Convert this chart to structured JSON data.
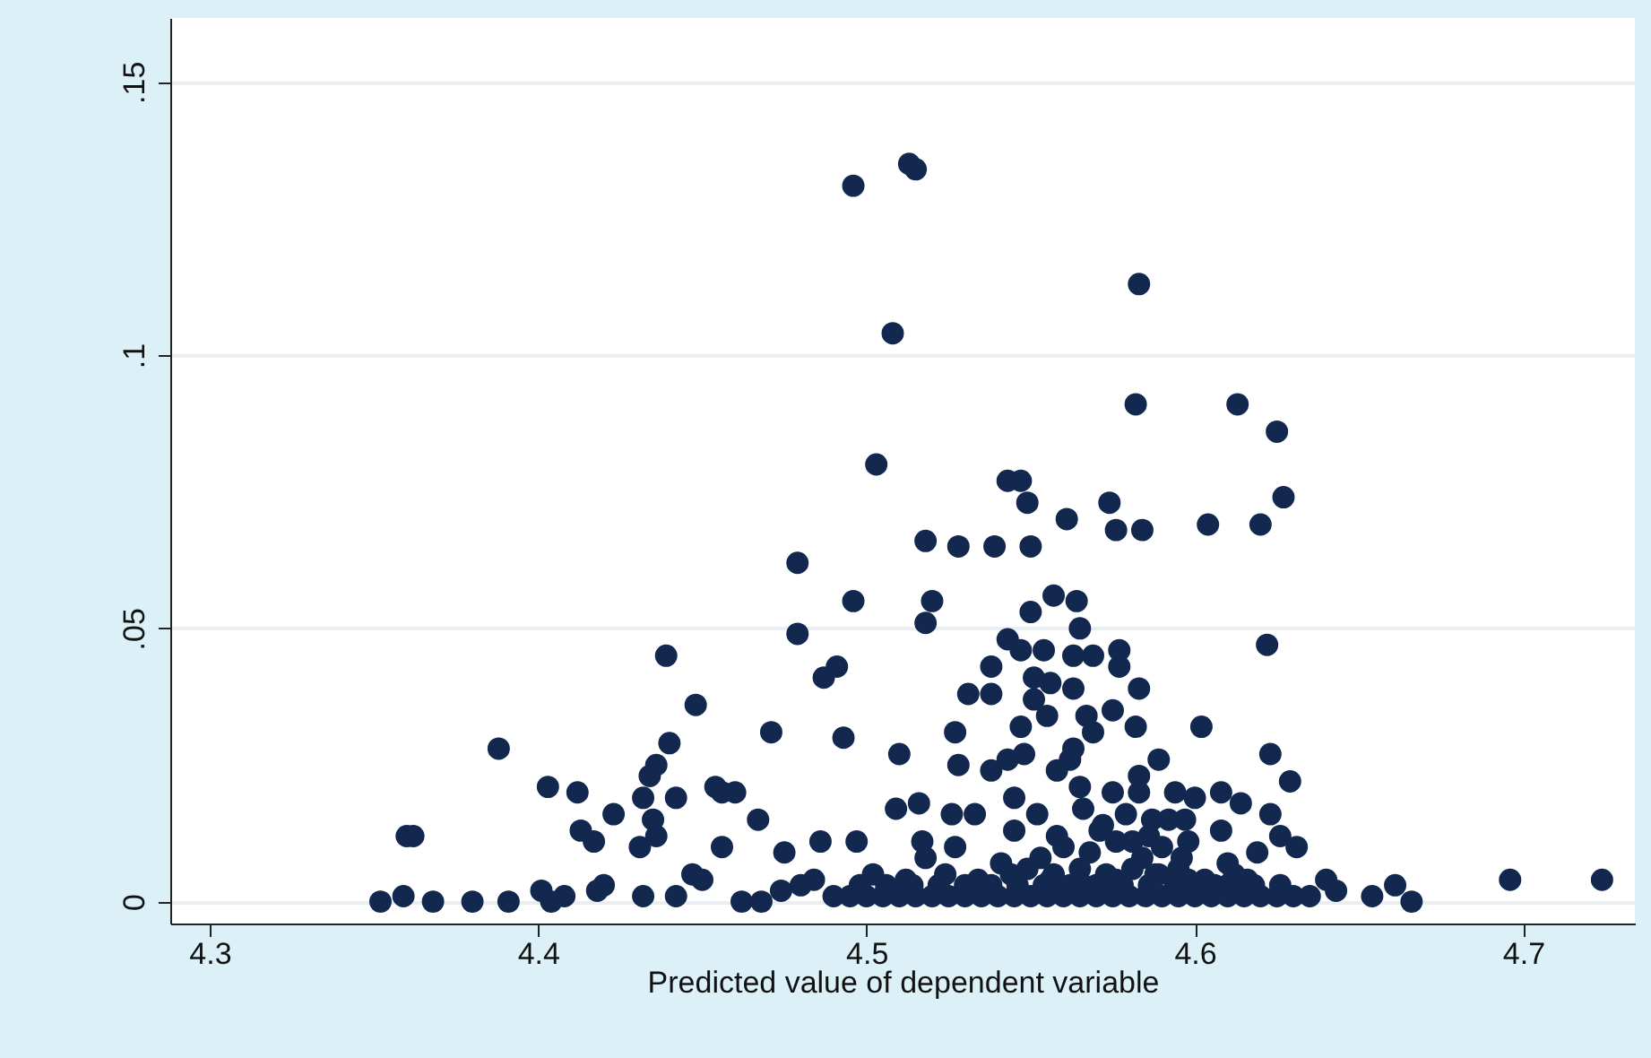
{
  "chart_data": {
    "type": "scatter",
    "xlabel": "Predicted value of dependent variable",
    "ylabel": null,
    "xlim": [
      4.288,
      4.734
    ],
    "ylim": [
      -0.004,
      0.1617
    ],
    "xticks": [
      4.3,
      4.4,
      4.5,
      4.6,
      4.7
    ],
    "yticks": [
      0,
      {
        "value": 0.05,
        "label": ".05"
      },
      {
        "value": 0.1,
        "label": ".1"
      },
      {
        "value": 0.15,
        "label": ".15"
      }
    ],
    "grid": "y",
    "marker": "circle",
    "series": [
      {
        "color": "#13284f",
        "x": [
          4.496,
          4.513,
          4.515,
          4.508,
          4.503,
          4.583,
          4.582,
          4.613,
          4.625,
          4.627,
          4.62,
          4.543,
          4.547,
          4.549,
          4.561,
          4.574,
          4.576,
          4.584,
          4.518,
          4.528,
          4.539,
          4.55,
          4.479,
          4.496,
          4.479,
          4.487,
          4.491,
          4.493,
          4.471,
          4.51,
          4.604,
          4.388,
          4.36,
          4.362,
          4.403,
          4.412,
          4.423,
          4.413,
          4.417,
          4.431,
          4.436,
          4.435,
          4.432,
          4.434,
          4.436,
          4.44,
          4.439,
          4.448,
          4.442,
          4.454,
          4.456,
          4.46,
          4.456,
          4.467,
          4.475,
          4.486,
          4.497,
          4.509,
          4.447,
          4.45,
          4.352,
          4.359,
          4.368,
          4.38,
          4.391,
          4.401,
          4.404,
          4.408,
          4.418,
          4.42,
          4.432,
          4.442,
          4.462,
          4.468,
          4.474,
          4.48,
          4.484,
          4.622,
          4.623,
          4.629,
          4.602,
          4.696,
          4.724,
          4.654,
          4.661,
          4.666,
          4.52,
          4.518,
          4.557,
          4.564,
          4.55,
          4.565,
          4.543,
          4.547,
          4.554,
          4.563,
          4.569,
          4.577,
          4.577,
          4.583,
          4.538,
          4.531,
          4.538,
          4.551,
          4.556,
          4.563,
          4.551,
          4.555,
          4.567,
          4.575,
          4.547,
          4.569,
          4.582,
          4.527,
          4.528,
          4.538,
          4.543,
          4.548,
          4.563,
          4.562,
          4.558,
          4.589,
          4.583,
          4.583,
          4.565,
          4.575,
          4.594,
          4.6,
          4.608,
          4.614,
          4.623,
          4.597,
          4.608,
          4.516,
          4.526,
          4.533,
          4.545,
          4.626,
          4.631,
          4.619,
          4.612,
          4.571,
          4.581,
          4.587,
          4.598,
          4.517,
          4.518,
          4.527,
          4.64,
          4.643,
          4.545,
          4.552,
          4.558,
          4.566,
          4.572,
          4.579,
          4.586,
          4.592,
          4.553,
          4.56,
          4.568,
          4.576,
          4.584,
          4.59,
          4.596,
          4.541,
          4.549,
          4.557,
          4.565,
          4.573,
          4.581,
          4.589,
          4.595,
          4.603,
          4.61,
          4.49,
          4.495,
          4.5,
          4.505,
          4.51,
          4.515,
          4.52,
          4.525,
          4.53,
          4.535,
          4.54,
          4.545,
          4.55,
          4.555,
          4.56,
          4.565,
          4.57,
          4.575,
          4.58,
          4.585,
          4.59,
          4.595,
          4.6,
          4.605,
          4.61,
          4.615,
          4.62,
          4.625,
          4.63,
          4.635,
          4.498,
          4.506,
          4.514,
          4.522,
          4.53,
          4.538,
          4.546,
          4.554,
          4.562,
          4.57,
          4.578,
          4.586,
          4.594,
          4.61,
          4.618,
          4.626,
          4.502,
          4.512,
          4.524,
          4.534,
          4.544,
          4.556,
          4.566,
          4.576,
          4.588,
          4.598,
          4.606,
          4.616
        ],
        "values": [
          0.131,
          0.135,
          0.134,
          0.104,
          0.08,
          0.113,
          0.091,
          0.091,
          0.086,
          0.074,
          0.069,
          0.077,
          0.077,
          0.073,
          0.07,
          0.073,
          0.068,
          0.068,
          0.066,
          0.065,
          0.065,
          0.065,
          0.062,
          0.055,
          0.049,
          0.041,
          0.043,
          0.03,
          0.031,
          0.027,
          0.069,
          0.028,
          0.012,
          0.012,
          0.021,
          0.02,
          0.016,
          0.013,
          0.011,
          0.01,
          0.012,
          0.015,
          0.019,
          0.023,
          0.025,
          0.029,
          0.045,
          0.036,
          0.019,
          0.021,
          0.02,
          0.02,
          0.01,
          0.015,
          0.009,
          0.011,
          0.011,
          0.017,
          0.005,
          0.004,
          0.0,
          0.001,
          0.0,
          0.0,
          0.0,
          0.002,
          0.0,
          0.001,
          0.002,
          0.003,
          0.001,
          0.001,
          0.0,
          0.0,
          0.002,
          0.003,
          0.004,
          0.047,
          0.027,
          0.022,
          0.032,
          0.004,
          0.004,
          0.001,
          0.003,
          0.0,
          0.055,
          0.051,
          0.056,
          0.055,
          0.053,
          0.05,
          0.048,
          0.046,
          0.046,
          0.045,
          0.045,
          0.046,
          0.043,
          0.039,
          0.043,
          0.038,
          0.038,
          0.041,
          0.04,
          0.039,
          0.037,
          0.034,
          0.034,
          0.035,
          0.032,
          0.031,
          0.032,
          0.031,
          0.025,
          0.024,
          0.026,
          0.027,
          0.028,
          0.026,
          0.024,
          0.026,
          0.023,
          0.02,
          0.021,
          0.02,
          0.02,
          0.019,
          0.02,
          0.018,
          0.016,
          0.015,
          0.013,
          0.018,
          0.016,
          0.016,
          0.019,
          0.012,
          0.01,
          0.009,
          0.005,
          0.013,
          0.011,
          0.015,
          0.011,
          0.011,
          0.008,
          0.01,
          0.004,
          0.002,
          0.013,
          0.016,
          0.012,
          0.017,
          0.014,
          0.016,
          0.012,
          0.015,
          0.008,
          0.01,
          0.009,
          0.011,
          0.008,
          0.01,
          0.008,
          0.007,
          0.006,
          0.005,
          0.006,
          0.005,
          0.006,
          0.005,
          0.006,
          0.004,
          0.007,
          0.001,
          0.001,
          0.001,
          0.001,
          0.001,
          0.001,
          0.001,
          0.001,
          0.001,
          0.001,
          0.001,
          0.001,
          0.001,
          0.001,
          0.001,
          0.001,
          0.001,
          0.001,
          0.001,
          0.001,
          0.001,
          0.001,
          0.001,
          0.001,
          0.001,
          0.001,
          0.001,
          0.001,
          0.001,
          0.001,
          0.003,
          0.003,
          0.003,
          0.003,
          0.003,
          0.003,
          0.003,
          0.003,
          0.003,
          0.003,
          0.003,
          0.003,
          0.003,
          0.003,
          0.003,
          0.003,
          0.005,
          0.004,
          0.005,
          0.004,
          0.005,
          0.004,
          0.003,
          0.004,
          0.005,
          0.004,
          0.003,
          0.004
        ]
      }
    ]
  }
}
